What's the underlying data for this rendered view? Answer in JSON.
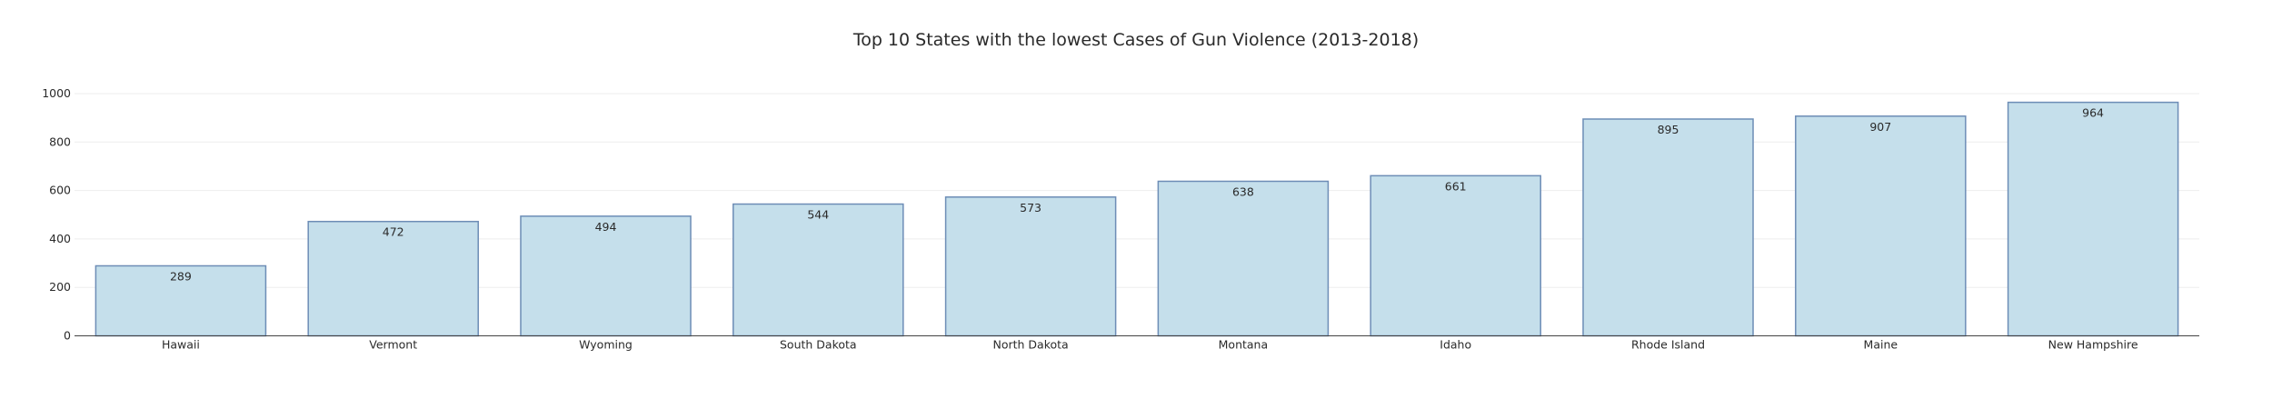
{
  "chart_data": {
    "type": "bar",
    "title": "Top 10 States with the lowest Cases of Gun Violence (2013-2018)",
    "xlabel": "",
    "ylabel": "",
    "categories": [
      "Hawaii",
      "Vermont",
      "Wyoming",
      "South Dakota",
      "North Dakota",
      "Montana",
      "Idaho",
      "Rhode Island",
      "Maine",
      "New Hampshire"
    ],
    "values": [
      289,
      472,
      494,
      544,
      573,
      638,
      661,
      895,
      907,
      964
    ],
    "ylim": [
      0,
      1000
    ],
    "yticks": [
      0,
      200,
      400,
      600,
      800,
      1000
    ],
    "grid": true,
    "legend": "none",
    "colors": {
      "bar_fill": "#c5dfeb",
      "bar_stroke": "#6d8db6"
    }
  }
}
